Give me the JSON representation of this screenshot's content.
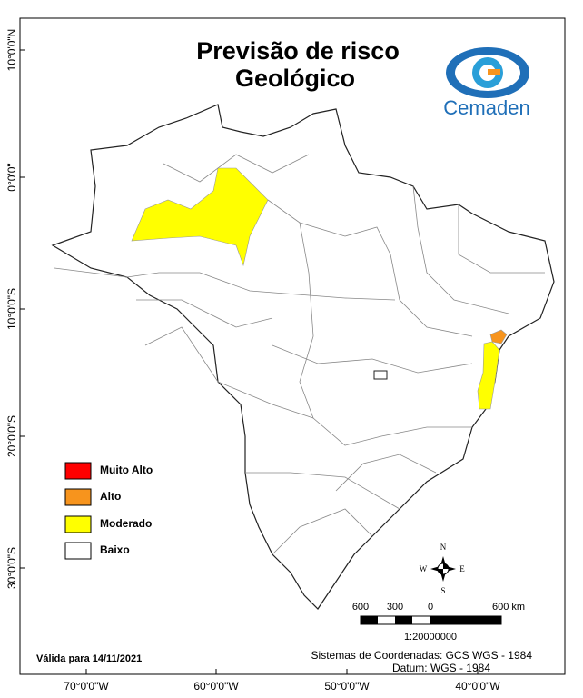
{
  "title": {
    "line1": "Previsão de risco",
    "line2": "Geológico"
  },
  "logo": "Cemaden",
  "latitude_labels": [
    "10°0'0\"N",
    "0°0'0\"",
    "10°0'0\"S",
    "20°0'0\"S",
    "30°0'0\"S"
  ],
  "longitude_labels": [
    "70°0'0\"W",
    "60°0'0\"W",
    "50°0'0\"W",
    "40°0'0\"W"
  ],
  "legend": [
    {
      "label": "Muito Alto",
      "color": "#ff0000"
    },
    {
      "label": "Alto",
      "color": "#f7941d"
    },
    {
      "label": "Moderado",
      "color": "#ffff00"
    },
    {
      "label": "Baixo",
      "color": "#ffffff"
    }
  ],
  "compass": {
    "n": "N",
    "s": "S",
    "e": "E",
    "w": "W"
  },
  "scale": {
    "labels": [
      "600",
      "300",
      "0",
      "600 km"
    ],
    "ratio": "1:20000000"
  },
  "footer": {
    "valid": "Válida para 14/11/2021",
    "coords": "Sistemas de Coordenadas: GCS WGS - 1984",
    "datum": "Datum: WGS - 1984"
  }
}
